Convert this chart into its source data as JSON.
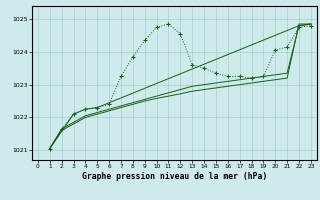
{
  "title": "Graphe pression niveau de la mer (hPa)",
  "xlim": [
    -0.5,
    23.5
  ],
  "ylim": [
    1020.7,
    1025.4
  ],
  "yticks": [
    1021,
    1022,
    1023,
    1024,
    1025
  ],
  "xticks": [
    0,
    1,
    2,
    3,
    4,
    5,
    6,
    7,
    8,
    9,
    10,
    11,
    12,
    13,
    14,
    15,
    16,
    17,
    18,
    19,
    20,
    21,
    22,
    23
  ],
  "bg_color": "#ceeaea",
  "grid_color": "#aacece",
  "line_color": "#1a5c1a",
  "line1_x": [
    1,
    2,
    3,
    4,
    5,
    6,
    7,
    8,
    9,
    10,
    11,
    12,
    13,
    14,
    15,
    16,
    17,
    18,
    19,
    20,
    21,
    22,
    23
  ],
  "line1_y": [
    1021.05,
    1021.65,
    1022.1,
    1022.25,
    1022.3,
    1022.4,
    1023.25,
    1023.85,
    1024.35,
    1024.75,
    1024.85,
    1024.55,
    1023.6,
    1023.5,
    1023.35,
    1023.25,
    1023.25,
    1023.2,
    1023.25,
    1024.05,
    1024.15,
    1024.75,
    1024.8
  ],
  "line2_x": [
    1,
    3,
    4,
    5,
    22,
    23
  ],
  "line2_y": [
    1021.05,
    1022.1,
    1022.25,
    1022.3,
    1024.8,
    1024.85
  ],
  "line3_x": [
    1,
    2,
    3,
    4,
    5,
    6,
    7,
    8,
    9,
    10,
    11,
    12,
    13,
    14,
    15,
    16,
    17,
    18,
    19,
    20,
    21,
    22,
    23
  ],
  "line3_y": [
    1021.05,
    1021.65,
    1021.85,
    1022.05,
    1022.15,
    1022.25,
    1022.35,
    1022.45,
    1022.55,
    1022.65,
    1022.75,
    1022.85,
    1022.95,
    1023.0,
    1023.05,
    1023.1,
    1023.15,
    1023.2,
    1023.25,
    1023.3,
    1023.35,
    1024.8,
    1024.85
  ],
  "line4_x": [
    1,
    2,
    3,
    4,
    5,
    6,
    7,
    8,
    9,
    10,
    11,
    12,
    13,
    14,
    15,
    16,
    17,
    18,
    19,
    20,
    21,
    22,
    23
  ],
  "line4_y": [
    1021.05,
    1021.6,
    1021.8,
    1022.0,
    1022.1,
    1022.2,
    1022.3,
    1022.4,
    1022.5,
    1022.58,
    1022.65,
    1022.72,
    1022.8,
    1022.85,
    1022.9,
    1022.95,
    1023.0,
    1023.05,
    1023.1,
    1023.15,
    1023.2,
    1024.85,
    1024.85
  ]
}
